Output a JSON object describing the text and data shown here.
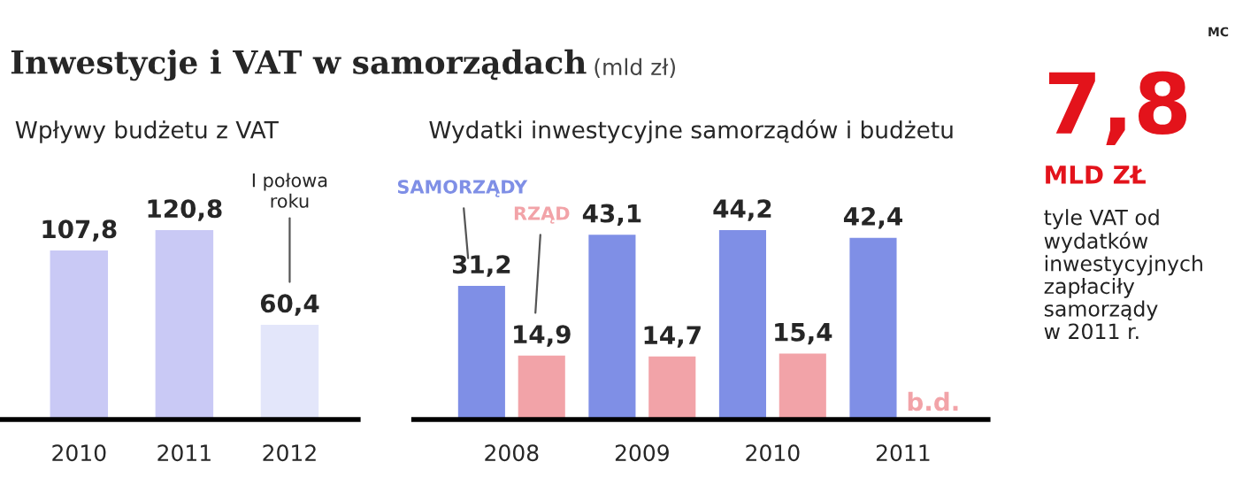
{
  "chart_data": [
    {
      "type": "other",
      "title": "Inwestycje i VAT w samorządach",
      "subtitle": "(mld zł)",
      "annotations": [
        "MC"
      ]
    },
    {
      "type": "bar",
      "xlabel": "Wpływy budżetu z VAT",
      "categories": [
        "2010",
        "2011",
        "2012"
      ],
      "values": [
        107.8,
        120.8,
        60.4
      ],
      "colors": [
        "#c9c9f5",
        "#c9c9f5",
        "#e3e6fa"
      ],
      "value_labels": [
        "107,8",
        "120,8",
        "60,4"
      ],
      "tick_labels": "x",
      "annotations": [
        "I połowa\nroku"
      ]
    },
    {
      "type": "bar",
      "xlabel": "Wydatki inwestycyjne samorządów i budżetu",
      "categories": [
        "2008",
        "2009",
        "2010",
        "2011"
      ],
      "series": [
        {
          "name": "SAMORZĄDY",
          "color": "#7f8fe6",
          "values": [
            31.2,
            43.1,
            44.2,
            42.4
          ],
          "value_labels": [
            "31,2",
            "43,1",
            "44,2",
            "42,4"
          ]
        },
        {
          "name": "RZĄD",
          "color": "#f2a3a8",
          "values": [
            14.9,
            14.7,
            15.4,
            null
          ],
          "value_labels": [
            "14,9",
            "14,7",
            "15,4",
            null
          ]
        }
      ],
      "tick_labels": "x",
      "annotations": [
        {
          "text": "b.d.",
          "x": "2011",
          "y": 0
        }
      ]
    },
    {
      "type": "other",
      "annotations": [
        "7,8",
        "MLD ZŁ",
        "tyle VAT od\nwydatków\ninwestycyjnych\nzapłaciły\nsamorządy\nw 2011 r."
      ]
    }
  ]
}
